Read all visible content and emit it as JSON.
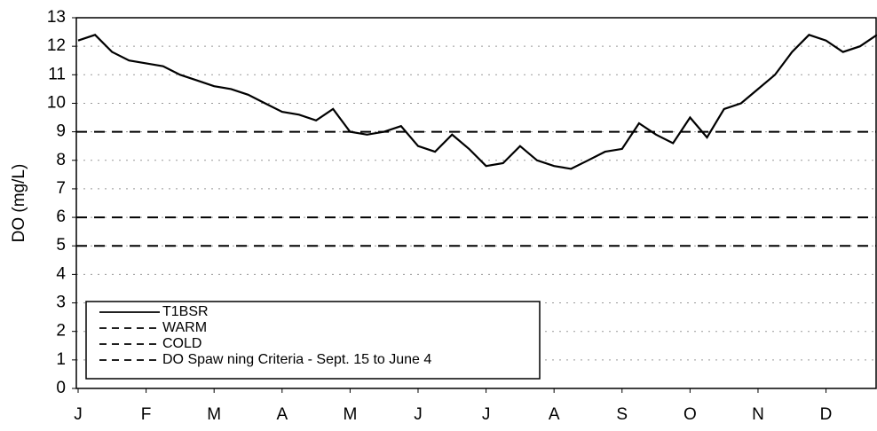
{
  "chart_data": {
    "type": "line",
    "y_label": "DO (mg/L)",
    "categories": [
      "J",
      null,
      null,
      null,
      "F",
      null,
      null,
      null,
      "M",
      null,
      null,
      null,
      "A",
      null,
      null,
      null,
      "M",
      null,
      null,
      null,
      "J",
      null,
      null,
      null,
      "J",
      null,
      null,
      null,
      "A",
      null,
      null,
      null,
      "S",
      null,
      null,
      null,
      "O",
      null,
      null,
      null,
      "N",
      null,
      null,
      null,
      "D",
      null,
      null,
      null
    ],
    "series": [
      {
        "name": "T1BSR",
        "color": "#000000",
        "values": [
          12.2,
          12.4,
          11.8,
          11.5,
          11.4,
          11.3,
          11.0,
          10.8,
          10.6,
          10.5,
          10.3,
          10.0,
          9.7,
          9.6,
          9.4,
          9.8,
          9.0,
          8.9,
          9.0,
          9.2,
          8.5,
          8.3,
          8.9,
          8.4,
          7.8,
          7.9,
          8.5,
          8.0,
          7.8,
          7.7,
          8.0,
          8.3,
          8.4,
          9.3,
          8.9,
          8.6,
          9.5,
          8.8,
          9.8,
          10.0,
          10.5,
          11.0,
          11.8,
          12.4,
          12.2,
          11.8,
          12.0,
          12.4
        ]
      }
    ],
    "reference_lines": [
      {
        "name": "WARM",
        "value": 5
      },
      {
        "name": "COLD",
        "value": 6
      },
      {
        "name": "DO Spaw ning Criteria - Sept. 15 to June 4",
        "value": 9
      }
    ],
    "ylim": [
      0,
      13
    ],
    "yticks": [
      0,
      1,
      2,
      3,
      4,
      5,
      6,
      7,
      8,
      9,
      10,
      11,
      12,
      13
    ],
    "grid": true
  }
}
